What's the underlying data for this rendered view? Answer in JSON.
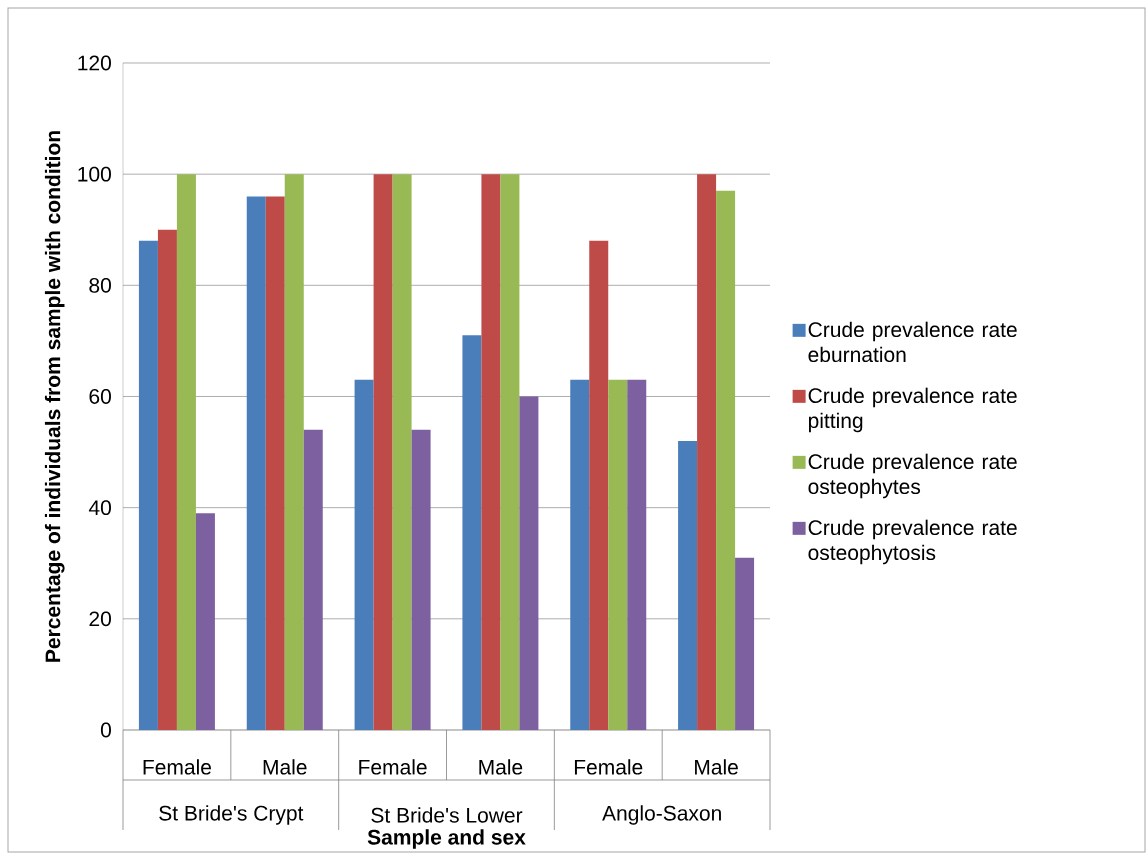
{
  "chart_data": {
    "type": "bar",
    "xlabel": "Sample and sex",
    "ylabel": "Percentage of individuals from sample with condition",
    "categories": [
      "Female",
      "Male",
      "Female",
      "Male",
      "Female",
      "Male"
    ],
    "annotations": [
      "St Bride's Crypt",
      "St Bride's Lower",
      "Anglo-Saxon"
    ],
    "series": [
      {
        "name": "Crude prevalence rate eburnation",
        "color": "#4a7ebb",
        "values": [
          88,
          96,
          63,
          71,
          63,
          52
        ]
      },
      {
        "name": "Crude prevalence rate pitting",
        "color": "#be4b48",
        "values": [
          90,
          96,
          100,
          100,
          88,
          100
        ]
      },
      {
        "name": "Crude prevalence rate osteophytes",
        "color": "#98b954",
        "values": [
          100,
          100,
          100,
          100,
          63,
          97
        ]
      },
      {
        "name": "Crude prevalence rate osteophytosis",
        "color": "#7d60a0",
        "values": [
          39,
          54,
          54,
          60,
          63,
          31
        ]
      }
    ],
    "ylim": [
      0,
      120
    ],
    "yticks": [
      0,
      20,
      40,
      60,
      80,
      100,
      120
    ],
    "grid": "y",
    "legend": "right"
  }
}
